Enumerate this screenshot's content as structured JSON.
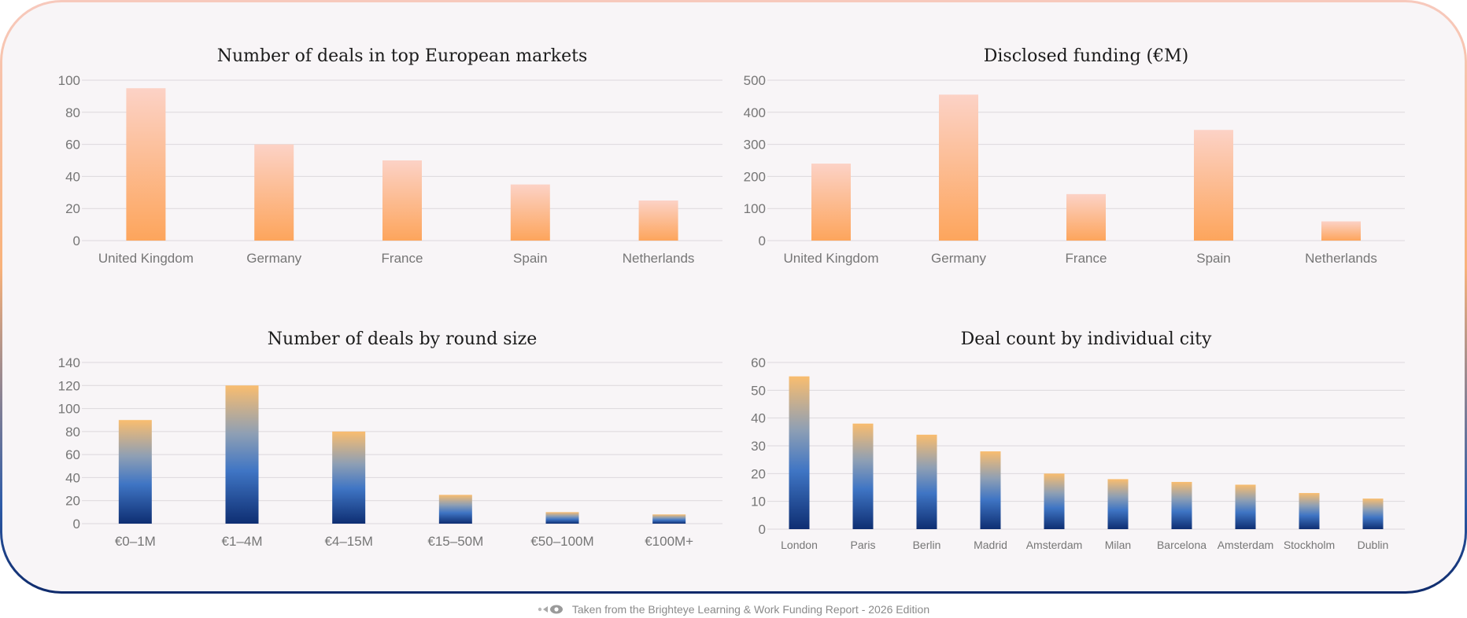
{
  "colors": {
    "peach_top": "#fcd2c6",
    "peach_bottom": "#fda55c",
    "navy_top": "#f9bd6f",
    "navy_mid": "#3f75c4",
    "navy_bottom": "#0e2e72"
  },
  "footer": {
    "text": "Taken from the Brighteye Learning & Work Funding Report - 2026 Edition",
    "logo_icon": "brighteye-logo-icon"
  },
  "chart_data": [
    {
      "id": "deals-markets",
      "type": "bar",
      "title": "Number of deals in top European markets",
      "categories": [
        "United Kingdom",
        "Germany",
        "France",
        "Spain",
        "Netherlands"
      ],
      "values": [
        95,
        60,
        50,
        35,
        25
      ],
      "yticks": [
        0,
        20,
        40,
        60,
        80,
        100
      ],
      "ylim": [
        0,
        100
      ],
      "xlabel": "",
      "ylabel": "",
      "grid": true,
      "palette": "peach"
    },
    {
      "id": "disclosed-funding",
      "type": "bar",
      "title": "Disclosed funding (€M)",
      "categories": [
        "United Kingdom",
        "Germany",
        "France",
        "Spain",
        "Netherlands"
      ],
      "values": [
        240,
        455,
        145,
        345,
        60
      ],
      "yticks": [
        0,
        100,
        200,
        300,
        400,
        500
      ],
      "ylim": [
        0,
        500
      ],
      "xlabel": "",
      "ylabel": "",
      "grid": true,
      "palette": "peach"
    },
    {
      "id": "deals-round-size",
      "type": "bar",
      "title": "Number of deals by round size",
      "categories": [
        "€0–1M",
        "€1–4M",
        "€4–15M",
        "€15–50M",
        "€50–100M",
        "€100M+"
      ],
      "values": [
        90,
        120,
        80,
        25,
        10,
        8
      ],
      "yticks": [
        0,
        20,
        40,
        60,
        80,
        100,
        120,
        140
      ],
      "ylim": [
        0,
        140
      ],
      "xlabel": "",
      "ylabel": "",
      "grid": true,
      "palette": "navy"
    },
    {
      "id": "deals-by-city",
      "type": "bar",
      "title": "Deal count by individual city",
      "categories": [
        "London",
        "Paris",
        "Berlin",
        "Madrid",
        "Amsterdam",
        "Milan",
        "Barcelona",
        "Amsterdam",
        "Stockholm",
        "Dublin"
      ],
      "values": [
        55,
        38,
        34,
        28,
        20,
        18,
        17,
        16,
        13,
        11
      ],
      "yticks": [
        0,
        10,
        20,
        30,
        40,
        50,
        60
      ],
      "ylim": [
        0,
        60
      ],
      "xlabel": "",
      "ylabel": "",
      "grid": true,
      "palette": "navy"
    }
  ]
}
